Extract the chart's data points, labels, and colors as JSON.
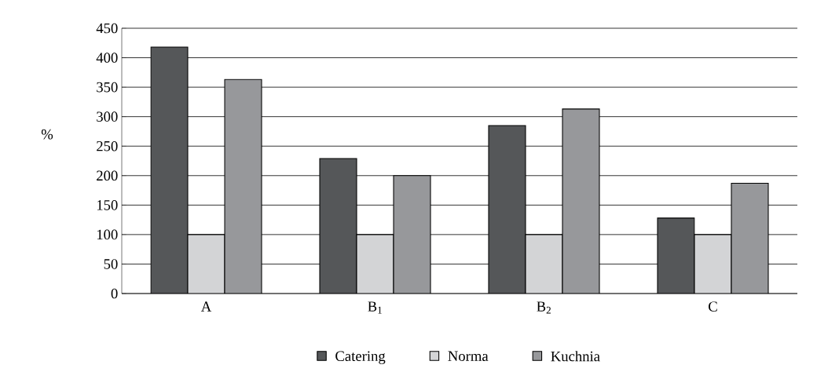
{
  "chart_data": {
    "type": "bar",
    "ylabel": "%",
    "categories": [
      "A",
      "B$_{1}$",
      "B$_{2}$",
      "C"
    ],
    "series": [
      {
        "name": "Catering",
        "color": "#555759",
        "values": [
          418,
          229,
          285,
          128
        ]
      },
      {
        "name": "Norma",
        "color": "#d3d4d6",
        "values": [
          100,
          100,
          100,
          100
        ]
      },
      {
        "name": "Kuchnia",
        "color": "#97989b",
        "values": [
          363,
          200,
          313,
          187
        ]
      }
    ],
    "ylim": [
      0,
      450
    ],
    "yticks": [
      0,
      50,
      100,
      150,
      200,
      250,
      300,
      350,
      400,
      450
    ],
    "grid": "y",
    "legend": "bottom"
  }
}
